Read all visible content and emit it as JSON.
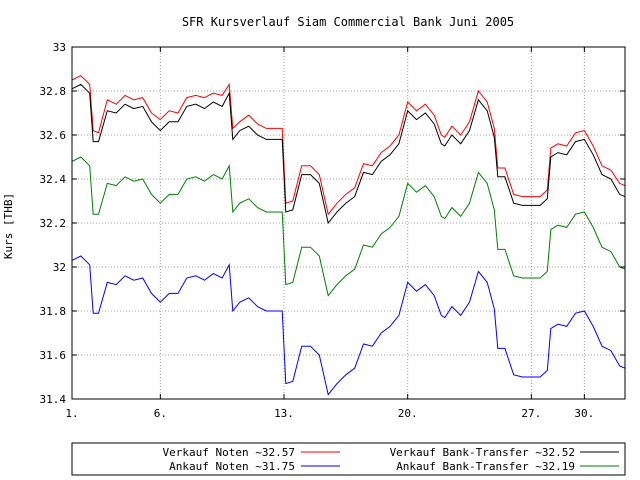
{
  "chart_data": {
    "type": "line",
    "title": "SFR Kursverlauf Siam Commercial Bank Juni 2005",
    "ylabel": "Kurs [THB]",
    "xlabel": "",
    "ylim": [
      31.4,
      33.0
    ],
    "xlim": [
      1,
      32.3
    ],
    "grid": true,
    "legend_placement": "bottom",
    "y_ticks": [
      "31.4",
      "31.6",
      "31.8",
      "32",
      "32.2",
      "32.4",
      "32.6",
      "32.8",
      "33"
    ],
    "x_ticks": [
      {
        "x": 1,
        "label": "1."
      },
      {
        "x": 6,
        "label": "6."
      },
      {
        "x": 13,
        "label": "13."
      },
      {
        "x": 20,
        "label": "20."
      },
      {
        "x": 27,
        "label": "27."
      },
      {
        "x": 30,
        "label": "30."
      }
    ],
    "series": [
      {
        "name": "Verkauf Noten ~32.57",
        "color": "#ff0000",
        "points": [
          [
            1,
            32.85
          ],
          [
            1.5,
            32.87
          ],
          [
            2,
            32.83
          ],
          [
            2.2,
            32.62
          ],
          [
            2.5,
            32.61
          ],
          [
            3,
            32.76
          ],
          [
            3.5,
            32.74
          ],
          [
            4,
            32.78
          ],
          [
            4.5,
            32.76
          ],
          [
            5,
            32.77
          ],
          [
            5.5,
            32.7
          ],
          [
            6,
            32.67
          ],
          [
            6.5,
            32.71
          ],
          [
            7,
            32.7
          ],
          [
            7.5,
            32.77
          ],
          [
            8,
            32.78
          ],
          [
            8.5,
            32.77
          ],
          [
            9,
            32.79
          ],
          [
            9.5,
            32.78
          ],
          [
            9.9,
            32.83
          ],
          [
            10.1,
            32.63
          ],
          [
            10.5,
            32.66
          ],
          [
            11,
            32.69
          ],
          [
            11.5,
            32.65
          ],
          [
            12,
            32.63
          ],
          [
            12.5,
            32.63
          ],
          [
            12.9,
            32.63
          ],
          [
            13.1,
            32.29
          ],
          [
            13.5,
            32.3
          ],
          [
            14,
            32.46
          ],
          [
            14.5,
            32.46
          ],
          [
            15,
            32.42
          ],
          [
            15.5,
            32.24
          ],
          [
            16,
            32.29
          ],
          [
            16.5,
            32.33
          ],
          [
            17,
            32.36
          ],
          [
            17.5,
            32.47
          ],
          [
            18,
            32.46
          ],
          [
            18.5,
            32.52
          ],
          [
            19,
            32.55
          ],
          [
            19.5,
            32.6
          ],
          [
            20,
            32.75
          ],
          [
            20.5,
            32.71
          ],
          [
            21,
            32.74
          ],
          [
            21.5,
            32.69
          ],
          [
            21.9,
            32.6
          ],
          [
            22.1,
            32.59
          ],
          [
            22.5,
            32.64
          ],
          [
            23,
            32.6
          ],
          [
            23.5,
            32.66
          ],
          [
            24,
            32.8
          ],
          [
            24.5,
            32.75
          ],
          [
            24.9,
            32.63
          ],
          [
            25.1,
            32.45
          ],
          [
            25.5,
            32.45
          ],
          [
            26,
            32.33
          ],
          [
            26.5,
            32.32
          ],
          [
            27,
            32.32
          ],
          [
            27.5,
            32.32
          ],
          [
            27.9,
            32.35
          ],
          [
            28.1,
            32.54
          ],
          [
            28.5,
            32.56
          ],
          [
            29,
            32.55
          ],
          [
            29.5,
            32.61
          ],
          [
            30,
            32.62
          ],
          [
            30.5,
            32.55
          ],
          [
            31,
            32.46
          ],
          [
            31.5,
            32.44
          ],
          [
            32,
            32.38
          ],
          [
            32.3,
            32.37
          ]
        ]
      },
      {
        "name": "Verkauf Bank-Transfer ~32.52",
        "color": "#000000",
        "points": [
          [
            1,
            32.81
          ],
          [
            1.5,
            32.83
          ],
          [
            2,
            32.79
          ],
          [
            2.2,
            32.57
          ],
          [
            2.5,
            32.57
          ],
          [
            3,
            32.71
          ],
          [
            3.5,
            32.7
          ],
          [
            4,
            32.74
          ],
          [
            4.5,
            32.72
          ],
          [
            5,
            32.73
          ],
          [
            5.5,
            32.66
          ],
          [
            6,
            32.62
          ],
          [
            6.5,
            32.66
          ],
          [
            7,
            32.66
          ],
          [
            7.5,
            32.73
          ],
          [
            8,
            32.74
          ],
          [
            8.5,
            32.72
          ],
          [
            9,
            32.75
          ],
          [
            9.5,
            32.73
          ],
          [
            9.9,
            32.79
          ],
          [
            10.1,
            32.58
          ],
          [
            10.5,
            32.62
          ],
          [
            11,
            32.64
          ],
          [
            11.5,
            32.6
          ],
          [
            12,
            32.58
          ],
          [
            12.5,
            32.58
          ],
          [
            12.9,
            32.58
          ],
          [
            13.1,
            32.25
          ],
          [
            13.5,
            32.26
          ],
          [
            14,
            32.42
          ],
          [
            14.5,
            32.42
          ],
          [
            15,
            32.38
          ],
          [
            15.5,
            32.2
          ],
          [
            16,
            32.25
          ],
          [
            16.5,
            32.29
          ],
          [
            17,
            32.32
          ],
          [
            17.5,
            32.43
          ],
          [
            18,
            32.42
          ],
          [
            18.5,
            32.48
          ],
          [
            19,
            32.51
          ],
          [
            19.5,
            32.56
          ],
          [
            20,
            32.71
          ],
          [
            20.5,
            32.67
          ],
          [
            21,
            32.7
          ],
          [
            21.5,
            32.65
          ],
          [
            21.9,
            32.56
          ],
          [
            22.1,
            32.55
          ],
          [
            22.5,
            32.6
          ],
          [
            23,
            32.56
          ],
          [
            23.5,
            32.62
          ],
          [
            24,
            32.76
          ],
          [
            24.5,
            32.71
          ],
          [
            24.9,
            32.59
          ],
          [
            25.1,
            32.41
          ],
          [
            25.5,
            32.41
          ],
          [
            26,
            32.29
          ],
          [
            26.5,
            32.28
          ],
          [
            27,
            32.28
          ],
          [
            27.5,
            32.28
          ],
          [
            27.9,
            32.31
          ],
          [
            28.1,
            32.5
          ],
          [
            28.5,
            32.52
          ],
          [
            29,
            32.51
          ],
          [
            29.5,
            32.57
          ],
          [
            30,
            32.58
          ],
          [
            30.5,
            32.51
          ],
          [
            31,
            32.42
          ],
          [
            31.5,
            32.4
          ],
          [
            32,
            32.33
          ],
          [
            32.3,
            32.32
          ]
        ]
      },
      {
        "name": "Ankauf Bank-Transfer ~32.19",
        "color": "#008000",
        "points": [
          [
            1,
            32.48
          ],
          [
            1.5,
            32.5
          ],
          [
            2,
            32.46
          ],
          [
            2.2,
            32.24
          ],
          [
            2.5,
            32.24
          ],
          [
            3,
            32.38
          ],
          [
            3.5,
            32.37
          ],
          [
            4,
            32.41
          ],
          [
            4.5,
            32.39
          ],
          [
            5,
            32.4
          ],
          [
            5.5,
            32.33
          ],
          [
            6,
            32.29
          ],
          [
            6.5,
            32.33
          ],
          [
            7,
            32.33
          ],
          [
            7.5,
            32.4
          ],
          [
            8,
            32.41
          ],
          [
            8.5,
            32.39
          ],
          [
            9,
            32.42
          ],
          [
            9.5,
            32.4
          ],
          [
            9.9,
            32.46
          ],
          [
            10.1,
            32.25
          ],
          [
            10.5,
            32.29
          ],
          [
            11,
            32.31
          ],
          [
            11.5,
            32.27
          ],
          [
            12,
            32.25
          ],
          [
            12.5,
            32.25
          ],
          [
            12.9,
            32.25
          ],
          [
            13.1,
            31.92
          ],
          [
            13.5,
            31.93
          ],
          [
            14,
            32.09
          ],
          [
            14.5,
            32.09
          ],
          [
            15,
            32.05
          ],
          [
            15.5,
            31.87
          ],
          [
            16,
            31.92
          ],
          [
            16.5,
            31.96
          ],
          [
            17,
            31.99
          ],
          [
            17.5,
            32.1
          ],
          [
            18,
            32.09
          ],
          [
            18.5,
            32.15
          ],
          [
            19,
            32.18
          ],
          [
            19.5,
            32.23
          ],
          [
            20,
            32.38
          ],
          [
            20.5,
            32.34
          ],
          [
            21,
            32.37
          ],
          [
            21.5,
            32.32
          ],
          [
            21.9,
            32.23
          ],
          [
            22.1,
            32.22
          ],
          [
            22.5,
            32.27
          ],
          [
            23,
            32.23
          ],
          [
            23.5,
            32.29
          ],
          [
            24,
            32.43
          ],
          [
            24.5,
            32.38
          ],
          [
            24.9,
            32.26
          ],
          [
            25.1,
            32.08
          ],
          [
            25.5,
            32.08
          ],
          [
            26,
            31.96
          ],
          [
            26.5,
            31.95
          ],
          [
            27,
            31.95
          ],
          [
            27.5,
            31.95
          ],
          [
            27.9,
            31.98
          ],
          [
            28.1,
            32.17
          ],
          [
            28.5,
            32.19
          ],
          [
            29,
            32.18
          ],
          [
            29.5,
            32.24
          ],
          [
            30,
            32.25
          ],
          [
            30.5,
            32.18
          ],
          [
            31,
            32.09
          ],
          [
            31.5,
            32.07
          ],
          [
            32,
            32.0
          ],
          [
            32.3,
            31.99
          ]
        ]
      },
      {
        "name": "Ankauf Noten ~31.75",
        "color": "#0000ff",
        "points": [
          [
            1,
            32.03
          ],
          [
            1.5,
            32.05
          ],
          [
            2,
            32.01
          ],
          [
            2.2,
            31.79
          ],
          [
            2.5,
            31.79
          ],
          [
            3,
            31.93
          ],
          [
            3.5,
            31.92
          ],
          [
            4,
            31.96
          ],
          [
            4.5,
            31.94
          ],
          [
            5,
            31.95
          ],
          [
            5.5,
            31.88
          ],
          [
            6,
            31.84
          ],
          [
            6.5,
            31.88
          ],
          [
            7,
            31.88
          ],
          [
            7.5,
            31.95
          ],
          [
            8,
            31.96
          ],
          [
            8.5,
            31.94
          ],
          [
            9,
            31.97
          ],
          [
            9.5,
            31.95
          ],
          [
            9.9,
            32.01
          ],
          [
            10.1,
            31.8
          ],
          [
            10.5,
            31.84
          ],
          [
            11,
            31.86
          ],
          [
            11.5,
            31.82
          ],
          [
            12,
            31.8
          ],
          [
            12.5,
            31.8
          ],
          [
            12.9,
            31.8
          ],
          [
            13.1,
            31.47
          ],
          [
            13.5,
            31.48
          ],
          [
            14,
            31.64
          ],
          [
            14.5,
            31.64
          ],
          [
            15,
            31.6
          ],
          [
            15.5,
            31.42
          ],
          [
            16,
            31.47
          ],
          [
            16.5,
            31.51
          ],
          [
            17,
            31.54
          ],
          [
            17.5,
            31.65
          ],
          [
            18,
            31.64
          ],
          [
            18.5,
            31.7
          ],
          [
            19,
            31.73
          ],
          [
            19.5,
            31.78
          ],
          [
            20,
            31.93
          ],
          [
            20.5,
            31.89
          ],
          [
            21,
            31.92
          ],
          [
            21.5,
            31.87
          ],
          [
            21.9,
            31.78
          ],
          [
            22.1,
            31.77
          ],
          [
            22.5,
            31.82
          ],
          [
            23,
            31.78
          ],
          [
            23.5,
            31.84
          ],
          [
            24,
            31.98
          ],
          [
            24.5,
            31.93
          ],
          [
            24.9,
            31.81
          ],
          [
            25.1,
            31.63
          ],
          [
            25.5,
            31.63
          ],
          [
            26,
            31.51
          ],
          [
            26.5,
            31.5
          ],
          [
            27,
            31.5
          ],
          [
            27.5,
            31.5
          ],
          [
            27.9,
            31.53
          ],
          [
            28.1,
            31.72
          ],
          [
            28.5,
            31.74
          ],
          [
            29,
            31.73
          ],
          [
            29.5,
            31.79
          ],
          [
            30,
            31.8
          ],
          [
            30.5,
            31.73
          ],
          [
            31,
            31.64
          ],
          [
            31.5,
            31.62
          ],
          [
            32,
            31.55
          ],
          [
            32.3,
            31.54
          ]
        ]
      }
    ]
  }
}
